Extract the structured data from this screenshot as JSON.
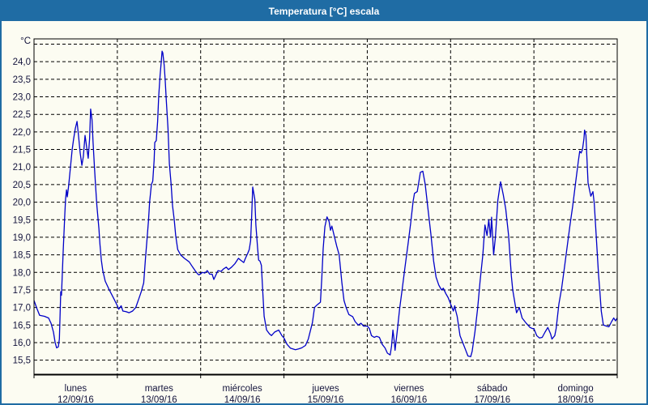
{
  "window": {
    "title": "Temperatura [°C] escala"
  },
  "colors": {
    "title_bar_bg": "#1F6CA4",
    "title_text": "#FFFFFF",
    "frame_border": "#1F6CA4",
    "background": "#FCFCF2",
    "plot_border": "#000000",
    "gridline": "#000000",
    "line": "#0000C8",
    "label_text": "#14143C"
  },
  "chart_data": {
    "type": "line",
    "title": "Temperatura [°C] escala",
    "ylabel": "°C",
    "legend": "none",
    "grid": "dashed",
    "y_axis": {
      "min": 15.1,
      "max": 24.65,
      "tick_min": 15.5,
      "tick_max": 24.5,
      "step": 0.5,
      "labeled_min": 15.5,
      "labeled_max": 24.0,
      "decimal_separator": ","
    },
    "x_axis": {
      "unit": "hours_since_monday_00h",
      "range_hours": [
        0,
        168
      ],
      "days": [
        {
          "name": "lunes",
          "date": "12/09/16"
        },
        {
          "name": "martes",
          "date": "13/09/16"
        },
        {
          "name": "miércoles",
          "date": "14/09/16"
        },
        {
          "name": "jueves",
          "date": "15/09/16"
        },
        {
          "name": "viernes",
          "date": "16/09/16"
        },
        {
          "name": "sábado",
          "date": "17/09/16"
        },
        {
          "name": "domingo",
          "date": "18/09/16"
        }
      ]
    },
    "series": [
      {
        "name": "Temperatura",
        "color": "#0000C8",
        "points": [
          [
            0,
            17.2
          ],
          [
            0.9,
            16.95
          ],
          [
            1.6,
            16.78
          ],
          [
            3,
            16.75
          ],
          [
            4.2,
            16.7
          ],
          [
            4.9,
            16.55
          ],
          [
            5.6,
            16.3
          ],
          [
            6.1,
            16.0
          ],
          [
            6.5,
            15.85
          ],
          [
            7,
            15.88
          ],
          [
            7.3,
            16.1
          ],
          [
            7.7,
            17.45
          ],
          [
            7.9,
            17.35
          ],
          [
            8.4,
            18.6
          ],
          [
            8.9,
            19.7
          ],
          [
            9.1,
            20.1
          ],
          [
            9.35,
            20.35
          ],
          [
            9.6,
            20.15
          ],
          [
            10,
            20.5
          ],
          [
            10.5,
            21.0
          ],
          [
            11,
            21.5
          ],
          [
            11.4,
            21.8
          ],
          [
            11.9,
            22.1
          ],
          [
            12.4,
            22.3
          ],
          [
            12.8,
            21.9
          ],
          [
            13.3,
            21.4
          ],
          [
            13.8,
            21.05
          ],
          [
            14.2,
            21.3
          ],
          [
            14.7,
            21.9
          ],
          [
            15.2,
            21.55
          ],
          [
            15.6,
            21.25
          ],
          [
            16,
            21.8
          ],
          [
            16.3,
            22.65
          ],
          [
            16.7,
            22.35
          ],
          [
            17,
            21.7
          ],
          [
            17.4,
            21.0
          ],
          [
            17.7,
            20.5
          ],
          [
            18.1,
            19.9
          ],
          [
            18.7,
            19.25
          ],
          [
            19,
            18.8
          ],
          [
            19.4,
            18.35
          ],
          [
            19.8,
            18.05
          ],
          [
            20.5,
            17.75
          ],
          [
            21.7,
            17.5
          ],
          [
            23,
            17.25
          ],
          [
            24,
            17.05
          ],
          [
            24.4,
            16.95
          ],
          [
            25.1,
            17.05
          ],
          [
            25.6,
            16.9
          ],
          [
            26.5,
            16.88
          ],
          [
            27.4,
            16.85
          ],
          [
            28.4,
            16.9
          ],
          [
            29.3,
            17.0
          ],
          [
            30.2,
            17.25
          ],
          [
            30.9,
            17.45
          ],
          [
            31.6,
            17.7
          ],
          [
            32.1,
            18.4
          ],
          [
            32.6,
            19.0
          ],
          [
            33,
            19.5
          ],
          [
            33.3,
            20.0
          ],
          [
            33.8,
            20.5
          ],
          [
            34.2,
            20.6
          ],
          [
            34.6,
            21.2
          ],
          [
            34.8,
            21.7
          ],
          [
            35.2,
            21.75
          ],
          [
            35.6,
            22.3
          ],
          [
            35.9,
            23.0
          ],
          [
            36.3,
            23.6
          ],
          [
            36.6,
            23.95
          ],
          [
            36.9,
            24.3
          ],
          [
            37.1,
            24.25
          ],
          [
            37.5,
            23.9
          ],
          [
            37.8,
            23.45
          ],
          [
            38.1,
            22.9
          ],
          [
            38.6,
            22.1
          ],
          [
            39,
            21.1
          ],
          [
            39.5,
            20.5
          ],
          [
            39.9,
            19.9
          ],
          [
            40.4,
            19.5
          ],
          [
            40.8,
            19.05
          ],
          [
            41.4,
            18.65
          ],
          [
            42.2,
            18.5
          ],
          [
            43.3,
            18.4
          ],
          [
            44.7,
            18.3
          ],
          [
            45.7,
            18.15
          ],
          [
            46.4,
            18.05
          ],
          [
            47.2,
            17.95
          ],
          [
            47.5,
            17.93
          ],
          [
            48.5,
            18.0
          ],
          [
            49.2,
            17.98
          ],
          [
            49.9,
            18.05
          ],
          [
            50.6,
            17.95
          ],
          [
            51.3,
            17.95
          ],
          [
            51.8,
            17.8
          ],
          [
            52.5,
            17.95
          ],
          [
            53,
            18.05
          ],
          [
            53.9,
            18.03
          ],
          [
            54.6,
            18.1
          ],
          [
            55.4,
            18.15
          ],
          [
            56,
            18.08
          ],
          [
            56.9,
            18.15
          ],
          [
            57.9,
            18.25
          ],
          [
            58.9,
            18.4
          ],
          [
            59.5,
            18.35
          ],
          [
            60.4,
            18.28
          ],
          [
            60.9,
            18.4
          ],
          [
            61.6,
            18.55
          ],
          [
            62,
            18.65
          ],
          [
            62.4,
            18.9
          ],
          [
            62.7,
            19.6
          ],
          [
            63,
            20.43
          ],
          [
            63.6,
            20.08
          ],
          [
            63.9,
            19.35
          ],
          [
            64.4,
            18.7
          ],
          [
            64.7,
            18.35
          ],
          [
            65.1,
            18.32
          ],
          [
            65.5,
            18.2
          ],
          [
            65.9,
            17.45
          ],
          [
            66.3,
            16.75
          ],
          [
            67,
            16.36
          ],
          [
            67.8,
            16.25
          ],
          [
            68.4,
            16.2
          ],
          [
            69.3,
            16.3
          ],
          [
            70.5,
            16.36
          ],
          [
            71.4,
            16.2
          ],
          [
            72,
            16.13
          ],
          [
            72.9,
            15.95
          ],
          [
            73.9,
            15.84
          ],
          [
            75.3,
            15.8
          ],
          [
            76.2,
            15.82
          ],
          [
            77.1,
            15.85
          ],
          [
            78.2,
            15.92
          ],
          [
            79,
            16.1
          ],
          [
            80.2,
            16.57
          ],
          [
            80.8,
            17.0
          ],
          [
            81.6,
            17.08
          ],
          [
            82.5,
            17.15
          ],
          [
            82.9,
            17.85
          ],
          [
            83.3,
            18.68
          ],
          [
            83.8,
            19.3
          ],
          [
            84.4,
            19.58
          ],
          [
            85,
            19.45
          ],
          [
            85.4,
            19.2
          ],
          [
            85.8,
            19.32
          ],
          [
            86.4,
            19.07
          ],
          [
            87.2,
            18.75
          ],
          [
            87.9,
            18.5
          ],
          [
            88.7,
            17.7
          ],
          [
            89.3,
            17.2
          ],
          [
            89.9,
            17.0
          ],
          [
            90.7,
            16.8
          ],
          [
            91.8,
            16.74
          ],
          [
            92.5,
            16.6
          ],
          [
            93.4,
            16.5
          ],
          [
            94.2,
            16.55
          ],
          [
            94.9,
            16.47
          ],
          [
            96,
            16.47
          ],
          [
            96.6,
            16.4
          ],
          [
            97.2,
            16.2
          ],
          [
            98,
            16.15
          ],
          [
            98.7,
            16.18
          ],
          [
            99.5,
            16.15
          ],
          [
            100.3,
            15.95
          ],
          [
            101.1,
            15.85
          ],
          [
            101.8,
            15.7
          ],
          [
            102.6,
            15.65
          ],
          [
            103,
            15.9
          ],
          [
            103.4,
            16.36
          ],
          [
            103.8,
            16.0
          ],
          [
            104,
            15.78
          ],
          [
            104.6,
            16.3
          ],
          [
            105.3,
            16.95
          ],
          [
            106.1,
            17.55
          ],
          [
            106.9,
            18.17
          ],
          [
            107.7,
            18.78
          ],
          [
            108.5,
            19.4
          ],
          [
            109.2,
            20.02
          ],
          [
            109.6,
            20.25
          ],
          [
            110.4,
            20.3
          ],
          [
            110.8,
            20.55
          ],
          [
            111.3,
            20.85
          ],
          [
            112,
            20.88
          ],
          [
            112.7,
            20.5
          ],
          [
            113.5,
            19.8
          ],
          [
            114.3,
            19.1
          ],
          [
            115.1,
            18.33
          ],
          [
            115.8,
            17.87
          ],
          [
            116.6,
            17.64
          ],
          [
            117.4,
            17.5
          ],
          [
            117.9,
            17.55
          ],
          [
            118.6,
            17.4
          ],
          [
            119.3,
            17.28
          ],
          [
            120,
            17.1
          ],
          [
            120.4,
            17.0
          ],
          [
            120.8,
            16.9
          ],
          [
            121.2,
            17.05
          ],
          [
            121.5,
            16.9
          ],
          [
            121.9,
            16.75
          ],
          [
            122.7,
            16.2
          ],
          [
            123.5,
            16.0
          ],
          [
            124.3,
            15.8
          ],
          [
            125,
            15.62
          ],
          [
            125.8,
            15.6
          ],
          [
            126.2,
            15.75
          ],
          [
            127,
            16.3
          ],
          [
            127.8,
            16.98
          ],
          [
            128.5,
            17.75
          ],
          [
            129.3,
            18.5
          ],
          [
            129.9,
            19.35
          ],
          [
            130.5,
            19.05
          ],
          [
            131,
            19.5
          ],
          [
            131.5,
            19.0
          ],
          [
            131.8,
            19.57
          ],
          [
            132.4,
            18.5
          ],
          [
            132.9,
            19.0
          ],
          [
            133.6,
            20.05
          ],
          [
            134.4,
            20.58
          ],
          [
            135.2,
            20.2
          ],
          [
            135.9,
            19.8
          ],
          [
            136.7,
            19.05
          ],
          [
            137.5,
            17.9
          ],
          [
            137.9,
            17.5
          ],
          [
            139,
            16.85
          ],
          [
            139.8,
            17.0
          ],
          [
            140.6,
            16.7
          ],
          [
            141.8,
            16.55
          ],
          [
            142.9,
            16.43
          ],
          [
            143.6,
            16.4
          ],
          [
            144,
            16.4
          ],
          [
            144.8,
            16.2
          ],
          [
            145.6,
            16.13
          ],
          [
            146.4,
            16.15
          ],
          [
            147.2,
            16.3
          ],
          [
            148,
            16.43
          ],
          [
            148.8,
            16.25
          ],
          [
            149.2,
            16.1
          ],
          [
            150,
            16.2
          ],
          [
            150.4,
            16.4
          ],
          [
            151.2,
            17.1
          ],
          [
            152,
            17.55
          ],
          [
            152.8,
            18.15
          ],
          [
            153.6,
            18.75
          ],
          [
            154.4,
            19.35
          ],
          [
            155.2,
            19.9
          ],
          [
            156,
            20.55
          ],
          [
            156.8,
            21.17
          ],
          [
            157.2,
            21.45
          ],
          [
            157.6,
            21.4
          ],
          [
            158,
            21.5
          ],
          [
            158.4,
            21.8
          ],
          [
            158.6,
            22.05
          ],
          [
            159,
            21.9
          ],
          [
            159.2,
            21.4
          ],
          [
            159.6,
            20.55
          ],
          [
            160.4,
            20.17
          ],
          [
            161,
            20.3
          ],
          [
            161.4,
            19.95
          ],
          [
            162,
            18.95
          ],
          [
            162.6,
            17.95
          ],
          [
            163,
            17.45
          ],
          [
            163.4,
            16.9
          ],
          [
            164,
            16.5
          ],
          [
            164.9,
            16.47
          ],
          [
            165.6,
            16.45
          ],
          [
            166.4,
            16.6
          ],
          [
            167,
            16.7
          ],
          [
            167.5,
            16.62
          ],
          [
            168,
            16.7
          ]
        ]
      }
    ]
  }
}
